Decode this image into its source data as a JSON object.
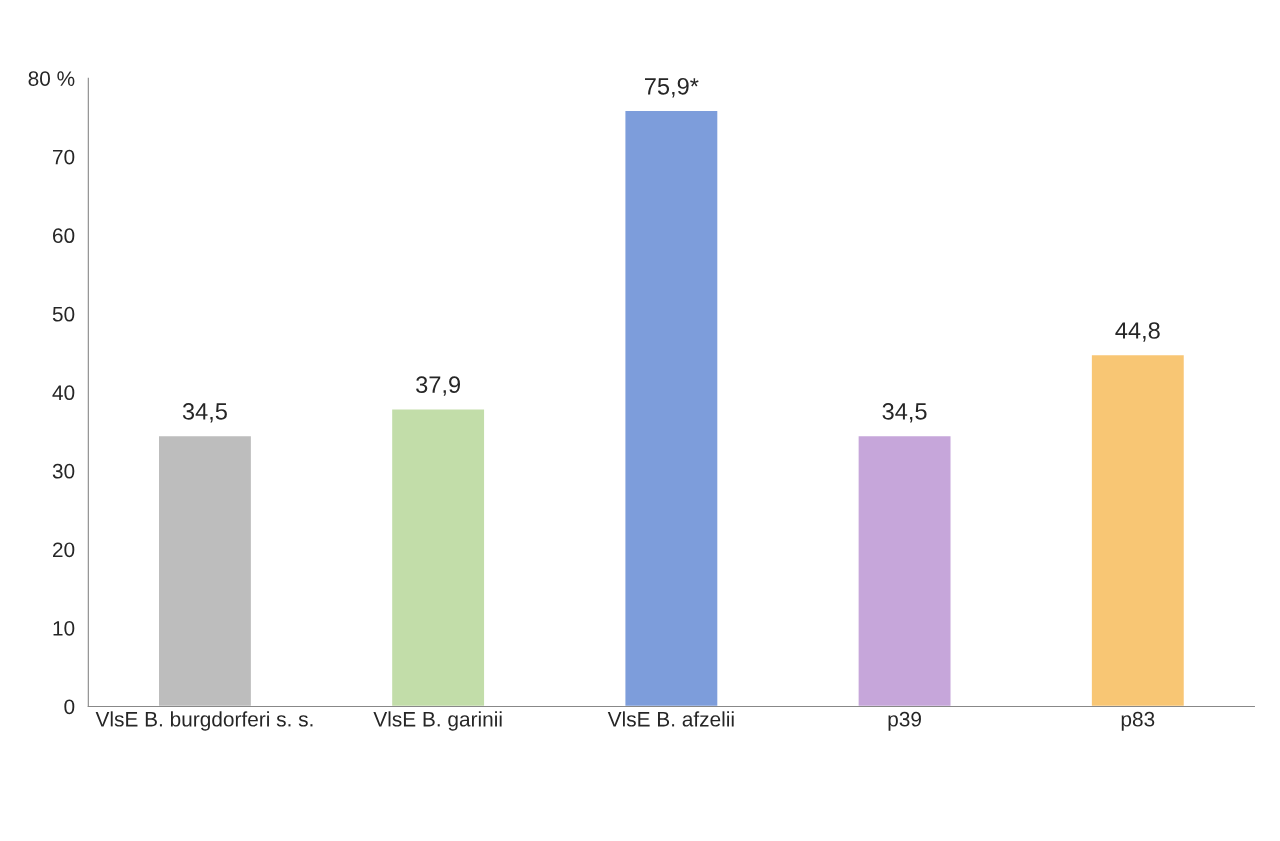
{
  "chart_data": {
    "type": "bar",
    "categories": [
      "VlsE B. burgdorferi s. s.",
      "VlsE B. garinii",
      "VlsE B. afzelii",
      "p39",
      "p83"
    ],
    "values": [
      34.5,
      37.9,
      75.9,
      34.5,
      44.8
    ],
    "colors": [
      "#bdbdbd",
      "#c2dda9",
      "#7d9ddb",
      "#c6a6da",
      "#f8c674"
    ],
    "value_labels": [
      "34,5",
      "37,9",
      "75,9*",
      "34,5",
      "44,8"
    ],
    "ylim": [
      0,
      80
    ],
    "yticks": [
      0,
      10,
      20,
      30,
      40,
      50,
      60,
      70,
      {
        "value": 80,
        "label": "80 %"
      }
    ],
    "grid": false,
    "legend": false
  }
}
